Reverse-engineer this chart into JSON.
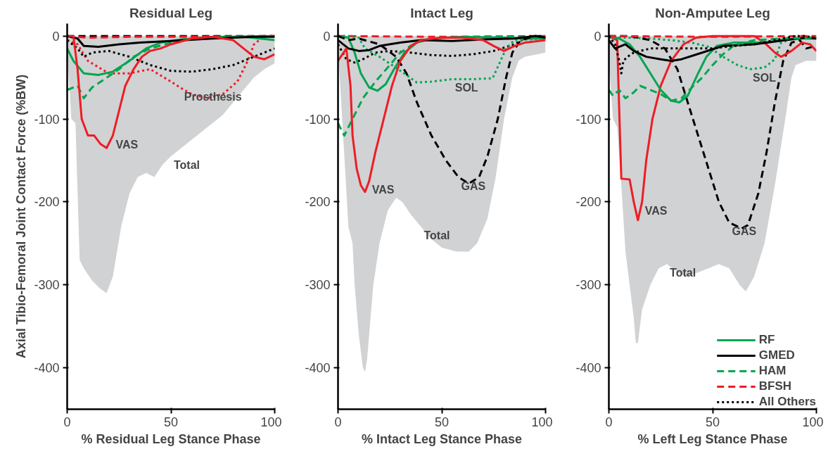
{
  "chart_data": [
    {
      "type": "line",
      "title": "Residual Leg",
      "xlabel": "% Residual Leg Stance Phase",
      "ylabel": "Axial Tibio-Femoral Joint Contact Force (%BW)",
      "xlim": [
        0,
        100
      ],
      "xticks": [
        0,
        50,
        100
      ],
      "ylim": [
        -450,
        15
      ],
      "yticks": [
        -400,
        -300,
        -200,
        -100,
        0
      ],
      "grid": false,
      "legend": false,
      "series": [
        {
          "type": "area",
          "color": "#d1d2d4",
          "x": [
            0,
            2,
            4,
            6,
            8,
            12,
            16,
            19,
            22,
            26,
            30,
            34,
            38,
            42,
            46,
            50,
            55,
            60,
            65,
            70,
            75,
            80,
            85,
            90,
            95,
            100
          ],
          "values": [
            -20,
            -100,
            -105,
            -270,
            -280,
            -295,
            -305,
            -310,
            -290,
            -230,
            -190,
            -170,
            -165,
            -170,
            -155,
            -145,
            -135,
            -125,
            -115,
            -105,
            -95,
            -80,
            -65,
            -50,
            -40,
            -33
          ]
        },
        {
          "color": "#000000",
          "line_style": "dashed",
          "x": [
            0,
            20,
            40,
            60,
            80,
            100
          ],
          "values": [
            0,
            0,
            0,
            0,
            0,
            0
          ]
        },
        {
          "color": "#ee1c25",
          "line_style": "dashed",
          "x": [
            0,
            10,
            30,
            60,
            100
          ],
          "values": [
            0,
            -2,
            -1,
            -1,
            0
          ]
        },
        {
          "color": "#ee1c25",
          "line_style": "dotted",
          "x": [
            0,
            5,
            10,
            20,
            30,
            40,
            50,
            55,
            60,
            67,
            75,
            82,
            87,
            90,
            95,
            100
          ],
          "values": [
            -5,
            -10,
            -30,
            -45,
            -45,
            -40,
            -55,
            -63,
            -70,
            -75,
            -70,
            -55,
            -30,
            -10,
            0,
            0
          ]
        },
        {
          "color": "#000000",
          "line_style": "dotted",
          "x": [
            0,
            5,
            8,
            12,
            20,
            30,
            40,
            50,
            60,
            70,
            80,
            90,
            100
          ],
          "values": [
            -5,
            -15,
            -25,
            -20,
            -18,
            -25,
            -35,
            -42,
            -43,
            -40,
            -35,
            -25,
            -15
          ]
        },
        {
          "color": "#00a650",
          "line_style": "dashed",
          "x": [
            0,
            5,
            8,
            12,
            18,
            25,
            32,
            40,
            50,
            60,
            75,
            100
          ],
          "values": [
            -65,
            -60,
            -75,
            -62,
            -52,
            -40,
            -25,
            -15,
            -8,
            -3,
            -1,
            0
          ]
        },
        {
          "color": "#00a650",
          "line_style": "solid",
          "x": [
            0,
            3,
            8,
            15,
            22,
            30,
            38,
            45,
            55,
            70,
            85,
            100
          ],
          "values": [
            -15,
            -30,
            -45,
            -47,
            -43,
            -30,
            -15,
            -8,
            -4,
            -2,
            -1,
            -5
          ]
        },
        {
          "color": "#000000",
          "line_style": "solid",
          "x": [
            0,
            5,
            8,
            15,
            25,
            35,
            50,
            70,
            90,
            100
          ],
          "values": [
            0,
            -3,
            -12,
            -13,
            -10,
            -8,
            -6,
            -3,
            -1,
            -1
          ]
        },
        {
          "color": "#ee1c25",
          "line_style": "solid",
          "x": [
            0,
            3,
            5,
            7,
            10,
            13,
            16,
            19,
            22,
            25,
            28,
            32,
            36,
            40,
            45,
            50,
            60,
            70,
            80,
            85,
            90,
            95,
            100
          ],
          "values": [
            0,
            0,
            -40,
            -100,
            -120,
            -120,
            -130,
            -135,
            -120,
            -90,
            -60,
            -40,
            -25,
            -18,
            -15,
            -10,
            -3,
            -1,
            -5,
            -15,
            -25,
            -28,
            -22
          ]
        }
      ],
      "annotations": [
        {
          "text": "VAS",
          "x": 22,
          "y": -120
        },
        {
          "text": "Prosthesis",
          "x": 55,
          "y": -63
        },
        {
          "text": "Total",
          "x": 50,
          "y": -145
        }
      ]
    },
    {
      "type": "line",
      "title": "Intact Leg",
      "xlabel": "% Intact Leg Stance Phase",
      "xlim": [
        0,
        100
      ],
      "xticks": [
        0,
        50,
        100
      ],
      "ylim": [
        -450,
        15
      ],
      "yticks": [
        -400,
        -300,
        -200,
        -100,
        0
      ],
      "grid": false,
      "legend": false,
      "series": [
        {
          "type": "area",
          "color": "#d1d2d4",
          "x": [
            0,
            2,
            5,
            7,
            8,
            10,
            12,
            13,
            14,
            17,
            20,
            24,
            28,
            31,
            35,
            40,
            45,
            50,
            57,
            63,
            67,
            72,
            76,
            80,
            84,
            87,
            90,
            100
          ],
          "values": [
            -15,
            -100,
            -230,
            -250,
            -300,
            -360,
            -400,
            -405,
            -390,
            -300,
            -250,
            -210,
            -195,
            -200,
            -215,
            -230,
            -245,
            -255,
            -260,
            -260,
            -250,
            -220,
            -170,
            -100,
            -50,
            -30,
            -25,
            -20
          ]
        },
        {
          "color": "#ee1c25",
          "line_style": "dashed",
          "x": [
            0,
            50,
            100
          ],
          "values": [
            0,
            -1,
            0
          ]
        },
        {
          "color": "#000000",
          "line_style": "dotted",
          "x": [
            0,
            4,
            8,
            12,
            18,
            25,
            35,
            45,
            55,
            65,
            75,
            85,
            92,
            100
          ],
          "values": [
            -10,
            -28,
            -32,
            -28,
            -20,
            -18,
            -20,
            -23,
            -24,
            -22,
            -18,
            -10,
            0,
            -2
          ]
        },
        {
          "color": "#00a650",
          "line_style": "dotted",
          "x": [
            0,
            5,
            10,
            13,
            20,
            29,
            38,
            45,
            55,
            65,
            74.5,
            81,
            85,
            100
          ],
          "values": [
            0,
            0,
            -2,
            -15,
            -25,
            -40,
            -56,
            -55,
            -52,
            -52,
            -51,
            -15,
            -5,
            -3
          ]
        },
        {
          "color": "#00a650",
          "line_style": "dashed",
          "x": [
            0,
            3,
            8,
            12,
            18,
            25,
            30,
            35,
            40,
            50,
            70,
            85,
            100
          ],
          "values": [
            -105,
            -120,
            -95,
            -75,
            -55,
            -35,
            -20,
            -12,
            -5,
            -2,
            -1,
            -1,
            -2
          ]
        },
        {
          "color": "#00a650",
          "line_style": "solid",
          "x": [
            0,
            5,
            8,
            11,
            15,
            19,
            23,
            27,
            32,
            38,
            45,
            60,
            80,
            90,
            100
          ],
          "values": [
            0,
            -2,
            -20,
            -45,
            -62,
            -66,
            -58,
            -40,
            -20,
            -8,
            -3,
            -1,
            -2,
            -3,
            -3
          ]
        },
        {
          "color": "#000000",
          "line_style": "solid",
          "x": [
            0,
            5,
            10,
            15,
            20,
            30,
            40,
            55,
            70,
            85,
            95,
            100
          ],
          "values": [
            -5,
            -15,
            -18,
            -17,
            -12,
            -8,
            -5,
            -6,
            -4,
            -3,
            0,
            -2
          ]
        },
        {
          "color": "#000000",
          "line_style": "dashed",
          "x": [
            0,
            5,
            10,
            20,
            28,
            33,
            38,
            45,
            52,
            58,
            63,
            68,
            72,
            77,
            81,
            84,
            88,
            95,
            100
          ],
          "values": [
            0,
            -5,
            -3,
            -10,
            -25,
            -45,
            -80,
            -120,
            -150,
            -170,
            -178,
            -170,
            -145,
            -100,
            -50,
            -20,
            -5,
            0,
            0
          ]
        },
        {
          "color": "#ee1c25",
          "line_style": "solid",
          "x": [
            0,
            4,
            6,
            7,
            9,
            11,
            13,
            15,
            18,
            22,
            26,
            30,
            35,
            40,
            50,
            60,
            70,
            75,
            80,
            85,
            90,
            100
          ],
          "values": [
            -30,
            -15,
            -60,
            -120,
            -160,
            -180,
            -188,
            -175,
            -140,
            -100,
            -60,
            -30,
            -12,
            -5,
            -2,
            -2,
            -5,
            -12,
            -18,
            -12,
            -8,
            -5
          ]
        }
      ],
      "annotations": [
        {
          "text": "SOL",
          "x": 55,
          "y": -52
        },
        {
          "text": "VAS",
          "x": 15,
          "y": -175
        },
        {
          "text": "GAS",
          "x": 58,
          "y": -170
        },
        {
          "text": "Total",
          "x": 40,
          "y": -230
        }
      ]
    },
    {
      "type": "line",
      "title": "Non-Amputee Leg",
      "xlabel": "% Left Leg Stance Phase",
      "xlim": [
        0,
        100
      ],
      "xticks": [
        0,
        50,
        100
      ],
      "ylim": [
        -450,
        15
      ],
      "yticks": [
        -400,
        -300,
        -200,
        -100,
        0
      ],
      "grid": false,
      "legend": "bottom right",
      "series": [
        {
          "type": "area",
          "color": "#d1d2d4",
          "x": [
            0,
            2,
            4,
            6,
            8,
            10,
            12,
            13,
            14,
            16,
            20,
            24,
            28,
            33,
            38,
            43,
            48,
            53,
            58,
            63,
            66,
            70,
            75,
            80,
            85,
            88,
            90,
            95,
            100
          ],
          "values": [
            -30,
            -100,
            -110,
            -180,
            -260,
            -300,
            -340,
            -370,
            -370,
            -330,
            -300,
            -280,
            -275,
            -285,
            -290,
            -285,
            -280,
            -275,
            -280,
            -300,
            -308,
            -290,
            -250,
            -180,
            -100,
            -50,
            -35,
            -30,
            -30
          ]
        },
        {
          "color": "#00a650",
          "line_style": "dotted",
          "x": [
            0,
            10,
            20,
            30,
            40,
            48,
            55,
            62,
            68,
            75,
            80,
            83,
            90,
            100
          ],
          "values": [
            -2,
            -2,
            -3,
            -5,
            -8,
            -13,
            -25,
            -35,
            -40,
            -38,
            -28,
            -8,
            -2,
            -2
          ]
        },
        {
          "color": "#000000",
          "line_style": "dashed",
          "x": [
            0,
            10,
            20,
            27,
            33,
            38,
            43,
            48,
            53,
            58,
            64,
            67,
            72,
            76,
            80,
            84,
            88,
            92,
            95,
            100
          ],
          "values": [
            0,
            0,
            -5,
            -15,
            -40,
            -80,
            -120,
            -160,
            -200,
            -225,
            -232,
            -228,
            -190,
            -140,
            -80,
            -30,
            -8,
            -5,
            -15,
            -12
          ]
        },
        {
          "color": "#ee1c25",
          "line_style": "solid",
          "x": [
            0,
            4,
            5,
            6,
            10,
            12,
            14,
            16,
            18,
            21,
            25,
            30,
            36,
            42,
            50,
            70,
            75,
            80,
            83,
            88,
            93,
            97,
            100
          ],
          "values": [
            0,
            -5,
            -90,
            -172,
            -173,
            -200,
            -222,
            -200,
            -150,
            -100,
            -60,
            -30,
            -10,
            -2,
            0,
            0,
            -8,
            -20,
            -25,
            -18,
            -8,
            -10,
            -18
          ]
        },
        {
          "name": "RF",
          "color": "#00a650",
          "line_style": "solid",
          "x": [
            0,
            5,
            10,
            15,
            20,
            25,
            30,
            34,
            38,
            43,
            47,
            52,
            60,
            75,
            90,
            100
          ],
          "values": [
            0,
            -3,
            -10,
            -25,
            -45,
            -65,
            -78,
            -80,
            -72,
            -45,
            -25,
            -12,
            -8,
            -8,
            -3,
            -3
          ]
        },
        {
          "name": "GMED",
          "color": "#000000",
          "line_style": "solid",
          "x": [
            0,
            3,
            8,
            12,
            18,
            25,
            30,
            35,
            45,
            55,
            70,
            85,
            95,
            100
          ],
          "values": [
            -5,
            -15,
            -10,
            -18,
            -25,
            -28,
            -30,
            -28,
            -20,
            -12,
            -10,
            -5,
            -2,
            -3
          ]
        },
        {
          "name": "HAM",
          "color": "#00a650",
          "line_style": "dashed",
          "x": [
            0,
            2,
            5,
            8,
            12,
            15,
            20,
            25,
            30,
            35,
            40,
            45,
            50,
            55,
            60,
            70,
            85,
            100
          ],
          "values": [
            -65,
            -72,
            -65,
            -75,
            -68,
            -60,
            -65,
            -70,
            -78,
            -75,
            -62,
            -50,
            -35,
            -22,
            -12,
            -5,
            -3,
            -2
          ]
        },
        {
          "name": "BFSH",
          "color": "#ee1c25",
          "line_style": "dashed",
          "x": [
            0,
            50,
            100
          ],
          "values": [
            0,
            -1,
            0
          ]
        },
        {
          "name": "All Others",
          "color": "#000000",
          "line_style": "dotted",
          "x": [
            0,
            3,
            5,
            6,
            7,
            9,
            12,
            20,
            30,
            40,
            50,
            60,
            70,
            80,
            90,
            95,
            100
          ],
          "values": [
            0,
            -10,
            -30,
            -45,
            -30,
            -25,
            -20,
            -15,
            -15,
            -15,
            -15,
            -12,
            -10,
            -5,
            0,
            0,
            -3
          ]
        }
      ],
      "annotations": [
        {
          "text": "SOL",
          "x": 68,
          "y": -40
        },
        {
          "text": "VAS",
          "x": 16,
          "y": -200
        },
        {
          "text": "GAS",
          "x": 58,
          "y": -225
        },
        {
          "text": "Total",
          "x": 28,
          "y": -275
        }
      ]
    }
  ]
}
